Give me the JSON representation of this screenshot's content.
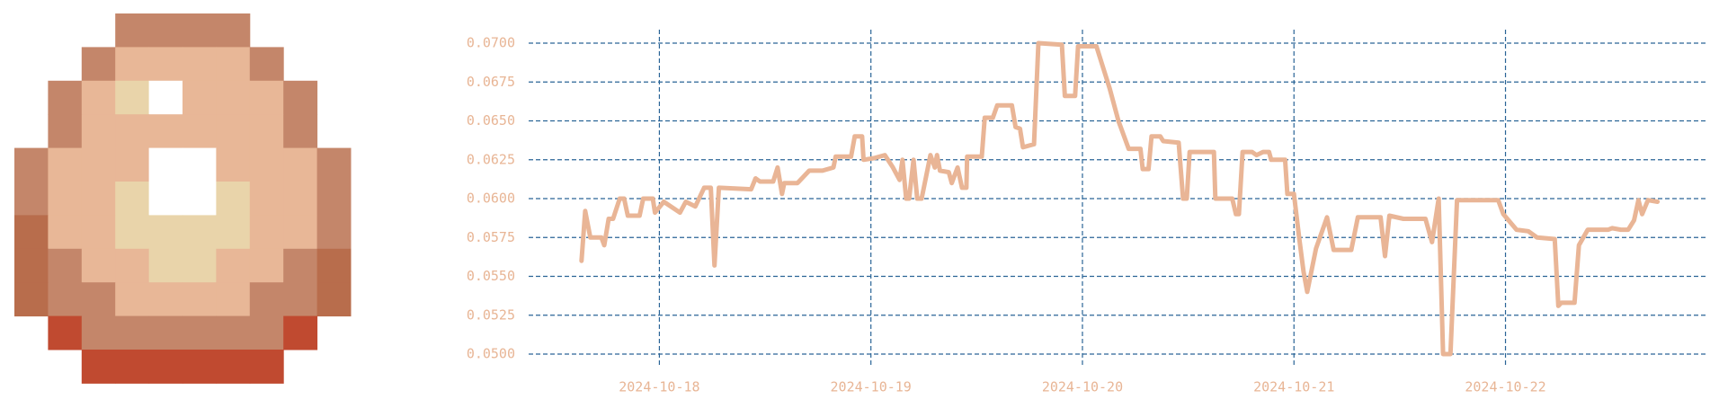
{
  "chart_data": {
    "type": "line",
    "x": [
      "2024-10-17T15:10",
      "2024-10-17T15:35",
      "2024-10-17T16:10",
      "2024-10-17T17:25",
      "2024-10-17T17:45",
      "2024-10-17T18:15",
      "2024-10-17T18:45",
      "2024-10-17T19:30",
      "2024-10-17T20:00",
      "2024-10-17T20:25",
      "2024-10-17T21:45",
      "2024-10-17T22:10",
      "2024-10-17T23:15",
      "2024-10-17T23:30",
      "2024-10-18T00:30",
      "2024-10-18T02:20",
      "2024-10-18T03:00",
      "2024-10-18T04:05",
      "2024-10-18T05:05",
      "2024-10-18T05:50",
      "2024-10-18T06:15",
      "2024-10-18T06:45",
      "2024-10-18T10:25",
      "2024-10-18T10:55",
      "2024-10-18T11:25",
      "2024-10-18T12:55",
      "2024-10-18T13:25",
      "2024-10-18T13:55",
      "2024-10-18T14:10",
      "2024-10-18T15:40",
      "2024-10-18T17:00",
      "2024-10-18T18:30",
      "2024-10-18T19:45",
      "2024-10-18T20:00",
      "2024-10-18T21:45",
      "2024-10-18T22:10",
      "2024-10-18T23:00",
      "2024-10-18T23:10",
      "2024-10-19T00:20",
      "2024-10-19T01:35",
      "2024-10-19T02:30",
      "2024-10-19T03:15",
      "2024-10-19T03:35",
      "2024-10-19T04:00",
      "2024-10-19T04:20",
      "2024-10-19T04:50",
      "2024-10-19T05:15",
      "2024-10-19T05:45",
      "2024-10-19T06:45",
      "2024-10-19T07:15",
      "2024-10-19T07:30",
      "2024-10-19T07:50",
      "2024-10-19T08:50",
      "2024-10-19T09:10",
      "2024-10-19T09:50",
      "2024-10-19T10:20",
      "2024-10-19T10:50",
      "2024-10-19T10:55",
      "2024-10-19T12:35",
      "2024-10-19T12:55",
      "2024-10-19T13:50",
      "2024-10-19T14:20",
      "2024-10-19T16:00",
      "2024-10-19T16:25",
      "2024-10-19T16:55",
      "2024-10-19T17:15",
      "2024-10-19T18:30",
      "2024-10-19T19:00",
      "2024-10-19T21:40",
      "2024-10-19T22:00",
      "2024-10-19T23:10",
      "2024-10-19T23:30",
      "2024-10-20T01:35",
      "2024-10-20T03:05",
      "2024-10-20T04:05",
      "2024-10-20T05:15",
      "2024-10-20T06:35",
      "2024-10-20T06:50",
      "2024-10-20T07:30",
      "2024-10-20T07:50",
      "2024-10-20T08:50",
      "2024-10-20T09:10",
      "2024-10-20T10:55",
      "2024-10-20T11:25",
      "2024-10-20T11:50",
      "2024-10-20T12:10",
      "2024-10-20T14:55",
      "2024-10-20T15:05",
      "2024-10-20T17:00",
      "2024-10-20T17:25",
      "2024-10-20T17:45",
      "2024-10-20T18:10",
      "2024-10-20T19:15",
      "2024-10-20T19:45",
      "2024-10-20T20:30",
      "2024-10-20T21:10",
      "2024-10-20T21:25",
      "2024-10-20T23:00",
      "2024-10-20T23:15",
      "2024-10-21T00:00",
      "2024-10-21T00:35",
      "2024-10-21T01:05",
      "2024-10-21T01:30",
      "2024-10-21T02:30",
      "2024-10-21T03:45",
      "2024-10-21T04:30",
      "2024-10-21T06:30",
      "2024-10-21T07:15",
      "2024-10-21T09:50",
      "2024-10-21T10:20",
      "2024-10-21T10:50",
      "2024-10-21T12:25",
      "2024-10-21T14:55",
      "2024-10-21T15:40",
      "2024-10-21T16:25",
      "2024-10-21T16:55",
      "2024-10-21T17:45",
      "2024-10-21T18:30",
      "2024-10-21T23:10",
      "2024-10-21T23:45",
      "2024-10-22T01:15",
      "2024-10-22T02:35",
      "2024-10-22T03:35",
      "2024-10-22T05:35",
      "2024-10-22T06:00",
      "2024-10-22T06:20",
      "2024-10-22T07:50",
      "2024-10-22T08:20",
      "2024-10-22T09:20",
      "2024-10-22T11:40",
      "2024-10-22T12:05",
      "2024-10-22T13:05",
      "2024-10-22T13:55",
      "2024-10-22T14:35",
      "2024-10-22T15:05",
      "2024-10-22T15:30",
      "2024-10-22T16:10",
      "2024-10-22T17:15"
    ],
    "series": [
      {
        "color": "#e9b596",
        "values": [
          0.056,
          0.0592,
          0.0575,
          0.0575,
          0.057,
          0.0587,
          0.0587,
          0.06,
          0.06,
          0.0589,
          0.0589,
          0.06,
          0.06,
          0.0591,
          0.0598,
          0.0591,
          0.0598,
          0.0595,
          0.0607,
          0.0607,
          0.0557,
          0.0607,
          0.0606,
          0.0613,
          0.0611,
          0.0611,
          0.062,
          0.0603,
          0.061,
          0.061,
          0.0618,
          0.0618,
          0.062,
          0.0627,
          0.0627,
          0.064,
          0.064,
          0.0625,
          0.0626,
          0.0628,
          0.062,
          0.0612,
          0.0625,
          0.06,
          0.06,
          0.0625,
          0.06,
          0.06,
          0.0628,
          0.062,
          0.0628,
          0.0618,
          0.0617,
          0.061,
          0.062,
          0.0607,
          0.0607,
          0.0627,
          0.0627,
          0.0652,
          0.0652,
          0.066,
          0.066,
          0.0646,
          0.0645,
          0.0633,
          0.0635,
          0.07,
          0.0699,
          0.0666,
          0.0666,
          0.0698,
          0.0698,
          0.0671,
          0.065,
          0.0632,
          0.0632,
          0.0619,
          0.0619,
          0.064,
          0.064,
          0.0637,
          0.0636,
          0.06,
          0.06,
          0.063,
          0.063,
          0.06,
          0.06,
          0.059,
          0.059,
          0.063,
          0.063,
          0.0628,
          0.063,
          0.063,
          0.0625,
          0.0625,
          0.0603,
          0.0603,
          0.0575,
          0.0553,
          0.054,
          0.0568,
          0.0588,
          0.0567,
          0.0567,
          0.0588,
          0.0588,
          0.0563,
          0.0589,
          0.0587,
          0.0587,
          0.0572,
          0.06,
          0.05,
          0.05,
          0.0599,
          0.0599,
          0.059,
          0.058,
          0.0579,
          0.0575,
          0.0574,
          0.0531,
          0.0533,
          0.0533,
          0.057,
          0.058,
          0.058,
          0.0581,
          0.058,
          0.058,
          0.0586,
          0.0599,
          0.059,
          0.0599,
          0.0598
        ]
      }
    ],
    "xlim": [
      "2024-10-17T09:10",
      "2024-10-22T23:00"
    ],
    "xticks": [
      "2024-10-18",
      "2024-10-19",
      "2024-10-20",
      "2024-10-21",
      "2024-10-22"
    ],
    "ylim": [
      0.05,
      0.07
    ],
    "yticks": [
      {
        "value": 0.05,
        "label": "0.0500"
      },
      {
        "value": 0.0525,
        "label": "0.0525"
      },
      {
        "value": 0.055,
        "label": "0.0550"
      },
      {
        "value": 0.0575,
        "label": "0.0575"
      },
      {
        "value": 0.06,
        "label": "0.0600"
      },
      {
        "value": 0.0625,
        "label": "0.0625"
      },
      {
        "value": 0.065,
        "label": "0.0650"
      },
      {
        "value": 0.0675,
        "label": "0.0675"
      },
      {
        "value": 0.07,
        "label": "0.0700"
      }
    ],
    "grid": true
  }
}
